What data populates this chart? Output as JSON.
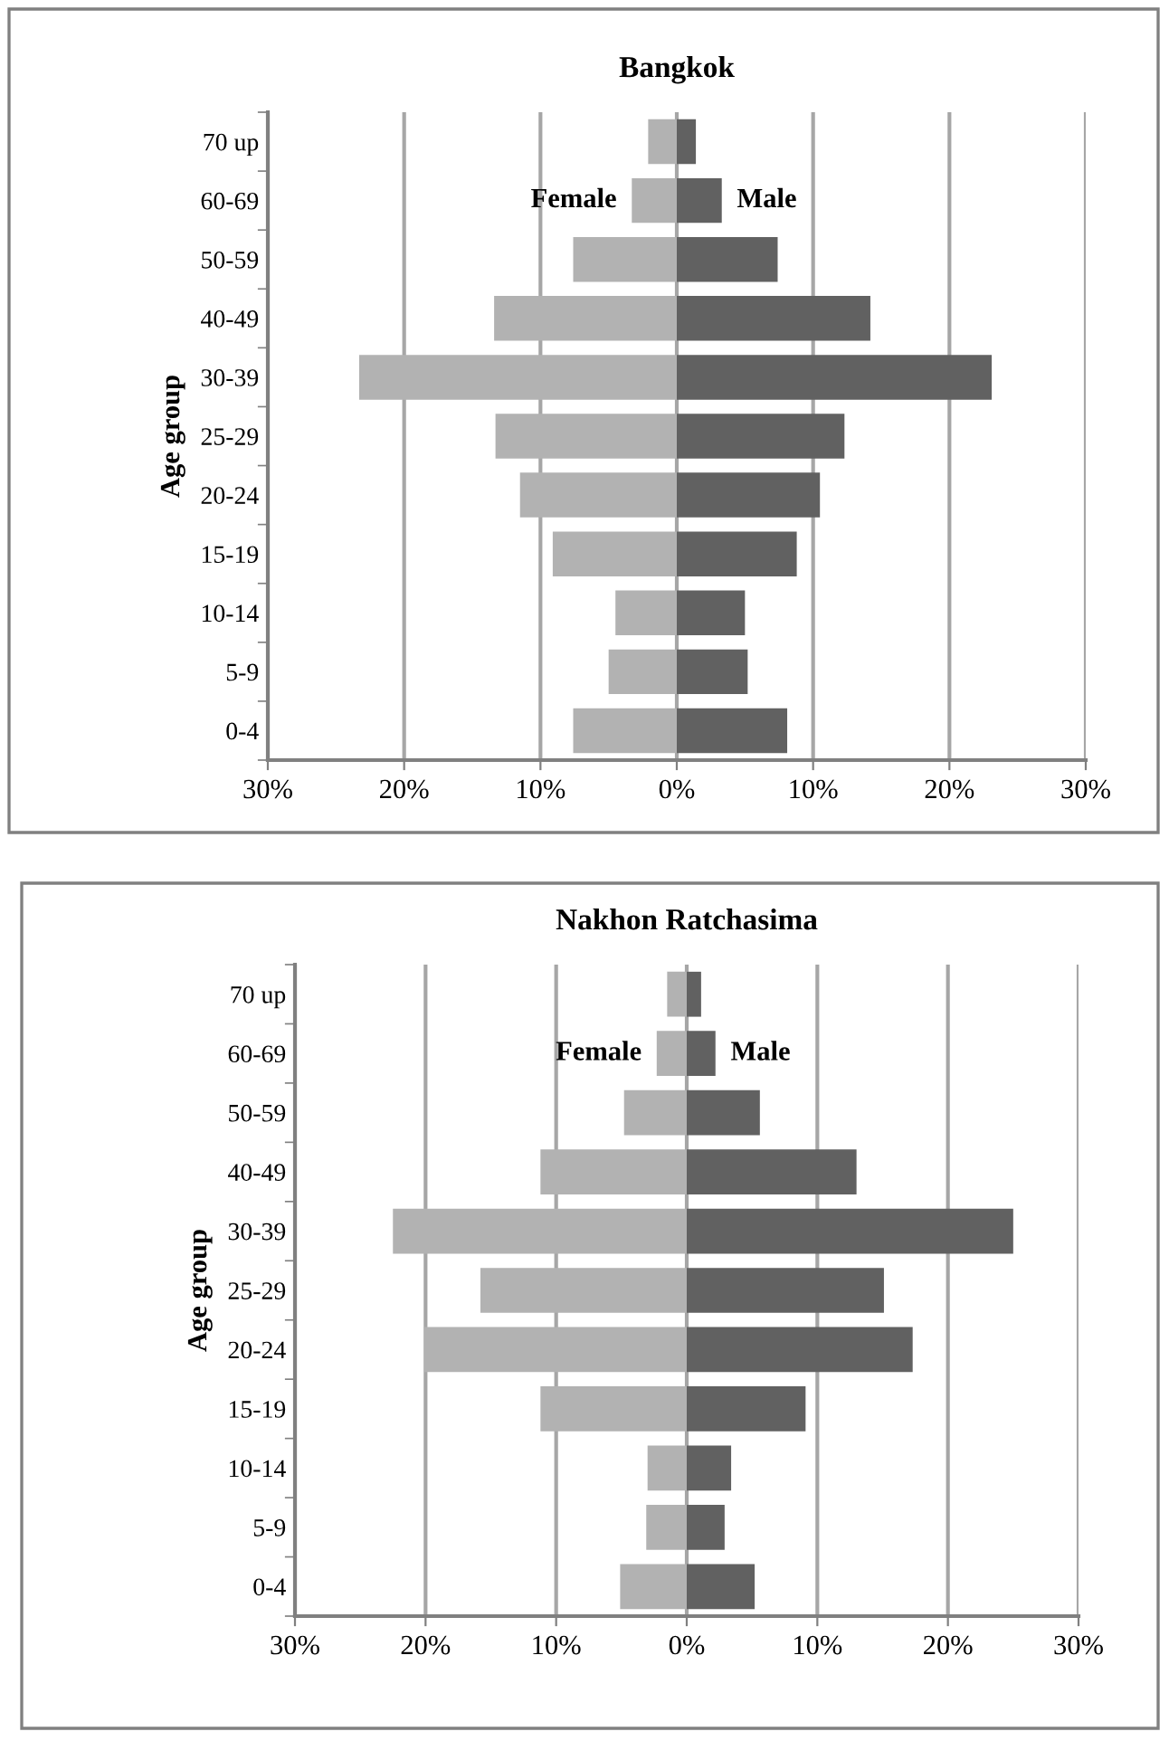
{
  "chart_data": [
    {
      "type": "bar",
      "title": "Bangkok",
      "ylabel": "Age group",
      "orientation": "horizontal",
      "stacked": true,
      "categories": [
        "70 up",
        "60-69",
        "50-59",
        "40-49",
        "30-39",
        "25-29",
        "20-24",
        "15-19",
        "10-14",
        "5-9",
        "0-4"
      ],
      "series": [
        {
          "name": "Female",
          "color": "#b2b2b2",
          "values": [
            -2.1,
            -3.3,
            -7.6,
            -13.4,
            -23.3,
            -13.3,
            -11.5,
            -9.1,
            -4.5,
            -5.0,
            -7.6
          ]
        },
        {
          "name": "Male",
          "color": "#616161",
          "values": [
            1.4,
            3.3,
            7.4,
            14.2,
            23.1,
            12.3,
            10.5,
            8.8,
            5.0,
            5.2,
            8.1
          ]
        }
      ],
      "xlim": [
        -30,
        30
      ],
      "xticks": [
        {
          "value": -30,
          "label": "30%"
        },
        {
          "value": -20,
          "label": "20%"
        },
        {
          "value": -10,
          "label": "10%"
        },
        {
          "value": 0,
          "label": "0%"
        },
        {
          "value": 10,
          "label": "10%"
        },
        {
          "value": 20,
          "label": "20%"
        },
        {
          "value": 30,
          "label": "30%"
        }
      ],
      "grid": "x",
      "legend": false
    },
    {
      "type": "bar",
      "title": "Nakhon Ratchasima",
      "ylabel": "Age group",
      "orientation": "horizontal",
      "stacked": true,
      "categories": [
        "70 up",
        "60-69",
        "50-59",
        "40-49",
        "30-39",
        "25-29",
        "20-24",
        "15-19",
        "10-14",
        "5-9",
        "0-4"
      ],
      "series": [
        {
          "name": "Female",
          "color": "#b2b2b2",
          "values": [
            -1.5,
            -2.3,
            -4.8,
            -11.2,
            -22.5,
            -15.8,
            -20.1,
            -11.2,
            -3.0,
            -3.1,
            -5.1
          ]
        },
        {
          "name": "Male",
          "color": "#616161",
          "values": [
            1.1,
            2.2,
            5.6,
            13.0,
            25.0,
            15.1,
            17.3,
            9.1,
            3.4,
            2.9,
            5.2
          ]
        }
      ],
      "xlim": [
        -30,
        30
      ],
      "xticks": [
        {
          "value": -30,
          "label": "30%"
        },
        {
          "value": -20,
          "label": "20%"
        },
        {
          "value": -10,
          "label": "10%"
        },
        {
          "value": 0,
          "label": "0%"
        },
        {
          "value": 10,
          "label": "10%"
        },
        {
          "value": 20,
          "label": "20%"
        },
        {
          "value": 30,
          "label": "30%"
        }
      ],
      "grid": "x",
      "legend": false
    }
  ]
}
